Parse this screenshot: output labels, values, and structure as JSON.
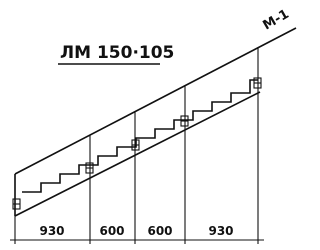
{
  "title": "ЛМ 150·105",
  "mark": "М-1",
  "dimensions": [
    "930",
    "600",
    "600",
    "930"
  ]
}
